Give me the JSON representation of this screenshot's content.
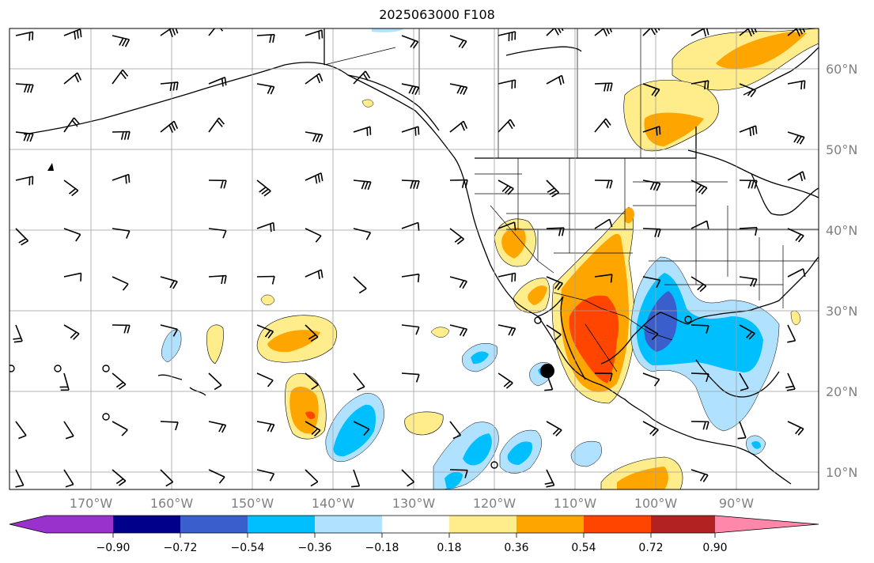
{
  "title": "2025063000 F108",
  "lon_labels": [
    "170°W",
    "160°W",
    "150°W",
    "140°W",
    "130°W",
    "120°W",
    "110°W",
    "100°W",
    "90°W"
  ],
  "lat_labels": [
    "60°N",
    "50°N",
    "40°N",
    "30°N",
    "20°N",
    "10°N"
  ],
  "colorbar": {
    "ticks": [
      "−0.90",
      "−0.72",
      "−0.54",
      "−0.36",
      "−0.18",
      "0.18",
      "0.36",
      "0.54",
      "0.72",
      "0.90"
    ],
    "colors": [
      "#9932cc",
      "#00008b",
      "#3a5fcd",
      "#00bfff",
      "#b0e2ff",
      "#ffffff",
      "#ffec8b",
      "#ffa500",
      "#ff4500",
      "#b22222",
      "#ff88aa"
    ]
  },
  "colors": {
    "grid": "#9e9e9e",
    "coast": "#000000",
    "light_yellow": "#ffec8b",
    "orange": "#ffa500",
    "red_orange": "#ff4500",
    "light_blue": "#b0e2ff",
    "deep_sky_blue": "#00bfff",
    "royal_blue": "#3a5fcd"
  },
  "map_extent": {
    "lon": [
      -180,
      -80
    ],
    "lat": [
      8,
      65
    ]
  }
}
